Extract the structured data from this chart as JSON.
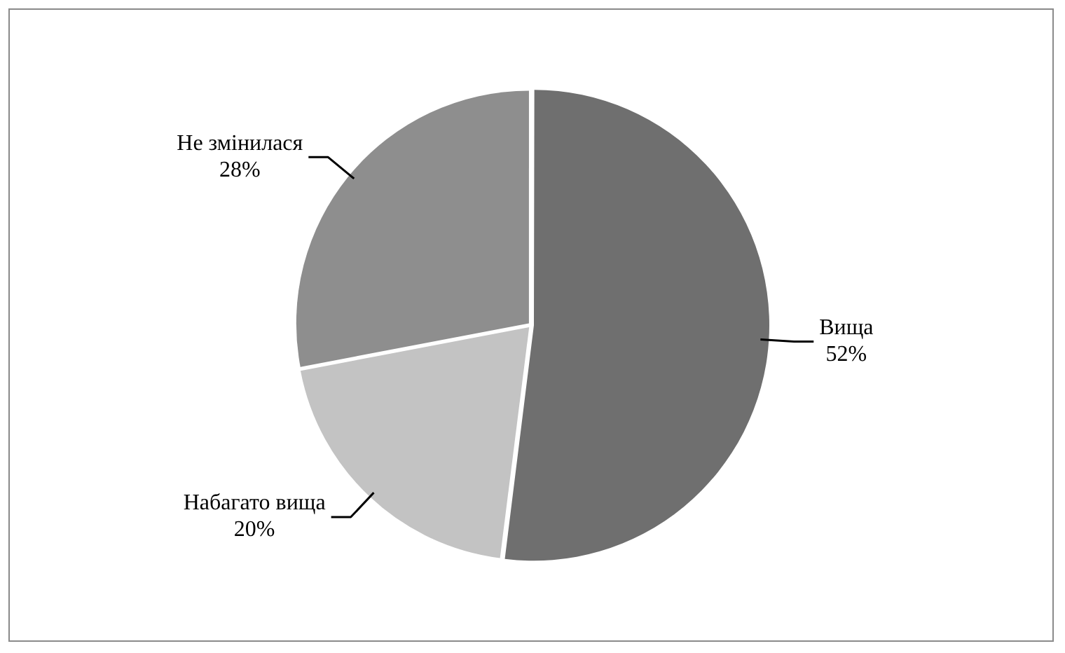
{
  "chart_data": {
    "type": "pie",
    "categories": [
      "Вища",
      "Набагато вища",
      "Не змінилася"
    ],
    "values": [
      52,
      20,
      28
    ],
    "colors": [
      "#6f6f6f",
      "#c3c3c3",
      "#8e8e8e"
    ],
    "value_labels": [
      "52%",
      "20%",
      "28%"
    ],
    "legend": false
  }
}
